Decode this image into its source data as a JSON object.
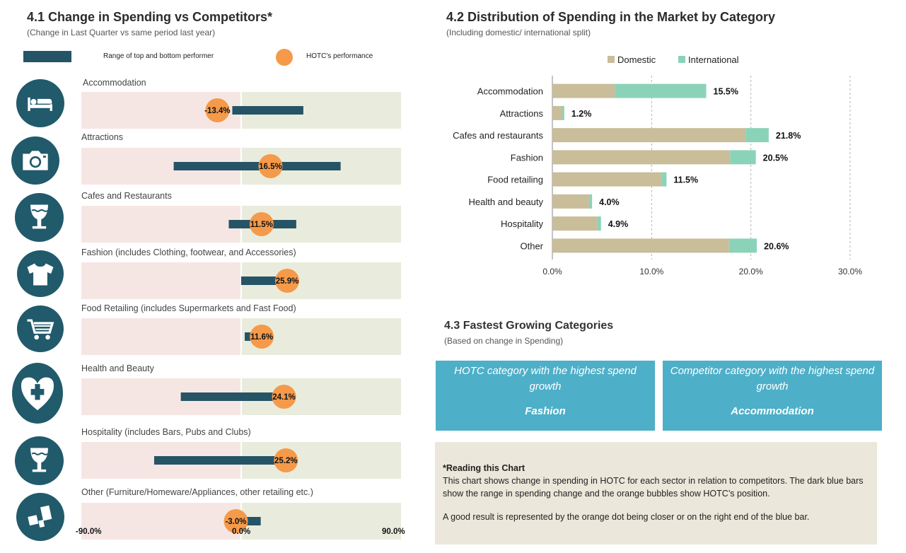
{
  "section41": {
    "title": "4.1 Change in Spending vs Competitors*",
    "subtitle": "(Change in Last Quarter vs same period last year)",
    "legend_range": "Range of top and bottom performer",
    "legend_hotc": "HOTC's performance"
  },
  "section42": {
    "title": "4.2 Distribution of Spending in the Market  by Category",
    "subtitle": "(Including domestic/ international split)"
  },
  "section43": {
    "title": "4.3 Fastest Growing Categories",
    "subtitle": "(Based on change in Spending)",
    "hotc_box": {
      "question": "HOTC category with the highest spend growth",
      "answer": "Fashion"
    },
    "comp_box": {
      "question": "Competitor category with the highest spend growth",
      "answer": "Accommodation"
    }
  },
  "note": {
    "heading": "*Reading this Chart",
    "para1": "This chart shows change in spending in HOTC for each sector in relation to competitors. The dark blue bars show the range in spending change and the orange bubbles show HOTC’s position.",
    "para2": "A good result is represented by the orange dot being closer or on the right end of the blue bar."
  },
  "chart_data": [
    {
      "type": "range-dot",
      "title": "4.1 Change in Spending vs Competitors*",
      "xlim": [
        -90,
        90
      ],
      "x_tick_labels": [
        "-90.0%",
        "0.0%",
        "90.0%"
      ],
      "colors": {
        "negative_band": "#f6e6e3",
        "positive_band": "#e9ecdc",
        "range_bar": "#255466",
        "hotc_dot": "#f59a4a"
      },
      "rows": [
        {
          "label": "Accommodation",
          "icon": "bed-icon",
          "range": [
            -5,
            35
          ],
          "hotc": -13.4,
          "hotc_label": "-13.4%"
        },
        {
          "label": "Attractions",
          "icon": "camera-icon",
          "range": [
            -38,
            56
          ],
          "hotc": 16.5,
          "hotc_label": "16.5%"
        },
        {
          "label": "Cafes and Restaurants",
          "icon": "wine-glass-icon",
          "range": [
            -7,
            31
          ],
          "hotc": 11.5,
          "hotc_label": "11.5%"
        },
        {
          "label": "Fashion (includes Clothing, footwear, and Accessories)",
          "icon": "tshirt-icon",
          "range": [
            0,
            25.9
          ],
          "hotc": 25.9,
          "hotc_label": "25.9%"
        },
        {
          "label": "Food Retailing (includes Supermarkets and Fast Food)",
          "icon": "shopping-cart-icon",
          "range": [
            2,
            11.6
          ],
          "hotc": 11.6,
          "hotc_label": "11.6%"
        },
        {
          "label": "Health and Beauty",
          "icon": "heart-plus-icon",
          "range": [
            -34,
            24.1
          ],
          "hotc": 24.1,
          "hotc_label": "24.1%"
        },
        {
          "label": "Hospitality (includes Bars, Pubs and Clubs)",
          "icon": "wine-glass-icon",
          "range": [
            -49,
            25.2
          ],
          "hotc": 25.2,
          "hotc_label": "25.2%"
        },
        {
          "label": "Other (Furniture/Homeware/Appliances, other retailing etc.)",
          "icon": "boxes-icon",
          "range": [
            -3,
            11
          ],
          "hotc": -3.0,
          "hotc_label": "-3.0%"
        }
      ]
    },
    {
      "type": "bar",
      "orientation": "horizontal",
      "stacked": true,
      "title": "4.2 Distribution of Spending in the Market  by Category",
      "categories": [
        "Accommodation",
        "Attractions",
        "Cafes and restaurants",
        "Fashion",
        "Food retailing",
        "Health and beauty",
        "Hospitality",
        "Other"
      ],
      "series": [
        {
          "name": "Domestic",
          "color": "#c9bd9a",
          "values": [
            6.3,
            1.0,
            19.5,
            17.9,
            11.0,
            3.7,
            4.5,
            17.8
          ]
        },
        {
          "name": "International",
          "color": "#8bd3b8",
          "values": [
            9.2,
            0.2,
            2.3,
            2.6,
            0.5,
            0.3,
            0.4,
            2.8
          ]
        }
      ],
      "totals": [
        "15.5%",
        "1.2%",
        "21.8%",
        "20.5%",
        "11.5%",
        "4.0%",
        "4.9%",
        "20.6%"
      ],
      "xlim": [
        0,
        30
      ],
      "x_tick_labels": [
        "0.0%",
        "10.0%",
        "20.0%",
        "30.0%"
      ],
      "grid": true,
      "legend_position": "top"
    }
  ]
}
